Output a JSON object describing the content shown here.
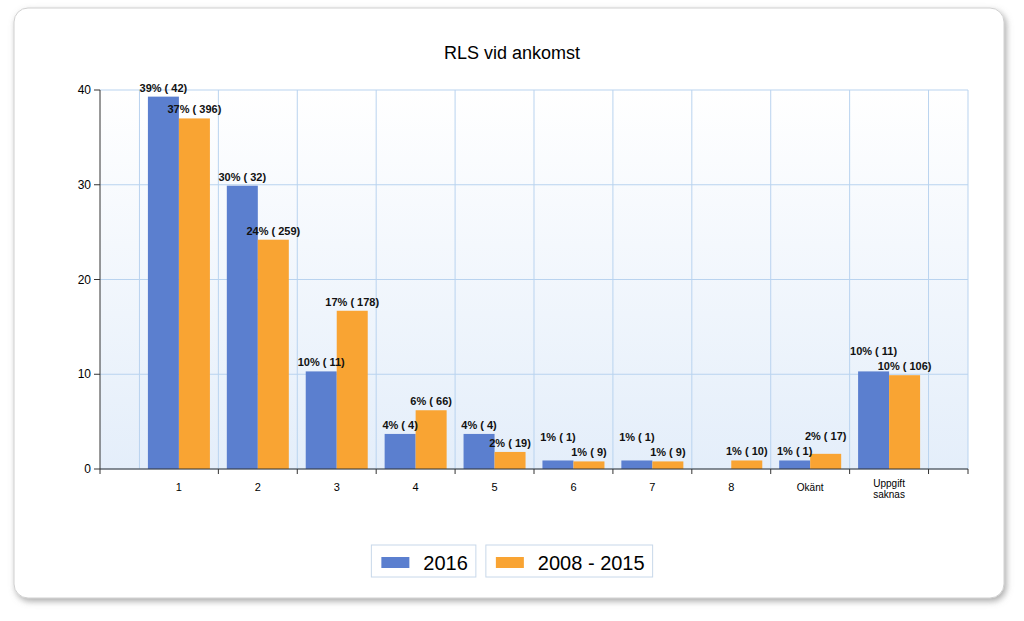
{
  "chart_data": {
    "type": "bar",
    "title": "RLS vid ankomst",
    "categories": [
      "1",
      "2",
      "3",
      "4",
      "5",
      "6",
      "7",
      "8",
      "Okänt",
      "Uppgift saknas"
    ],
    "series": [
      {
        "name": "2016",
        "color": "#5b7fcf",
        "values": [
          39.3,
          29.9,
          10.3,
          3.7,
          3.7,
          0.9,
          0.9,
          null,
          0.9,
          10.3
        ],
        "value_labels": [
          "39% ( 42)",
          "30% ( 32)",
          "10% ( 11)",
          "4% ( 4)",
          "4% ( 4)",
          "1% ( 1)",
          "1% ( 1)",
          null,
          "1% ( 1)",
          "10% ( 11)"
        ]
      },
      {
        "name": "2008 - 2015",
        "color": "#f9a433",
        "values": [
          37.0,
          24.2,
          16.7,
          6.2,
          1.8,
          0.8,
          0.8,
          0.9,
          1.6,
          9.9
        ],
        "value_labels": [
          "37% ( 396)",
          "24% ( 259)",
          "17% ( 178)",
          "6% ( 66)",
          "2% ( 19)",
          "1% ( 9)",
          "1% ( 9)",
          "1% ( 10)",
          "2% ( 17)",
          "10% ( 106)"
        ]
      }
    ],
    "ylim": [
      0,
      40
    ],
    "yticks": [
      0,
      10,
      20,
      30,
      40
    ],
    "grid": true,
    "legend": "bottom",
    "data_labels": true
  }
}
